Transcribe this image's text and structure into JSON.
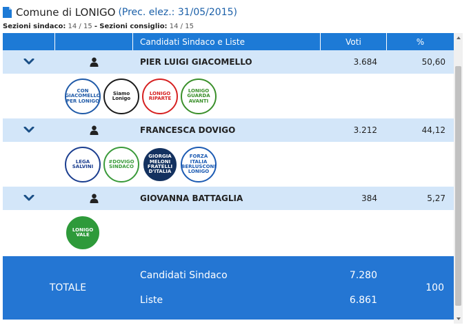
{
  "header": {
    "title": "Comune di LONIGO",
    "subtitle": "(Prec. elez.: 31/05/2015)",
    "icon": "document-icon"
  },
  "sezioni": {
    "sindaco_label": "Sezioni sindaco:",
    "sindaco_value": "14 / 15",
    "separator": "-",
    "consiglio_label": "Sezioni consiglio:",
    "consiglio_value": "14 / 15"
  },
  "table": {
    "headers": [
      "",
      "",
      "Candidati Sindaco e Liste",
      "Voti",
      "%"
    ],
    "candidates": [
      {
        "name": "PIER LUIGI GIACOMELLO",
        "votes": "3.684",
        "percent": "50,60",
        "lists": [
          {
            "label": "CON GIACOMELLO PER LONIGO",
            "color": "#1f5aa8",
            "bg": "#ffffff"
          },
          {
            "label": "Siamo Lonigo",
            "color": "#1a1a1a",
            "bg": "#ffffff"
          },
          {
            "label": "LONIGO RIPARTE",
            "color": "#d62020",
            "bg": "#ffffff"
          },
          {
            "label": "LONIGO GUARDA AVANTI",
            "color": "#3a8f2a",
            "bg": "#ffffff"
          }
        ]
      },
      {
        "name": "FRANCESCA DOVIGO",
        "votes": "3.212",
        "percent": "44,12",
        "lists": [
          {
            "label": "LEGA SALVINI",
            "color": "#1b3e8f",
            "bg": "#ffffff"
          },
          {
            "label": "#DOVIGO SINDACO",
            "color": "#3a9a3a",
            "bg": "#ffffff"
          },
          {
            "label": "GIORGIA MELONI FRATELLI D'ITALIA",
            "color": "#ffffff",
            "bg": "#13315f"
          },
          {
            "label": "FORZA ITALIA BERLUSCONI LONIGO",
            "color": "#1c5bb3",
            "bg": "#ffffff"
          }
        ]
      },
      {
        "name": "GIOVANNA BATTAGLIA",
        "votes": "384",
        "percent": "5,27",
        "lists": [
          {
            "label": "LONIGO VALE",
            "color": "#ffffff",
            "bg": "#2e9a3a"
          }
        ]
      }
    ],
    "total": {
      "label": "TOTALE",
      "sindaco_label": "Candidati Sindaco",
      "sindaco_votes": "7.280",
      "liste_label": "Liste",
      "liste_votes": "6.861",
      "percent": "100"
    }
  },
  "colors": {
    "header_bg": "#1d7ad6",
    "row_bg": "#d3e6f9",
    "total_bg": "#2476d3",
    "chevron": "#1a4f86"
  }
}
